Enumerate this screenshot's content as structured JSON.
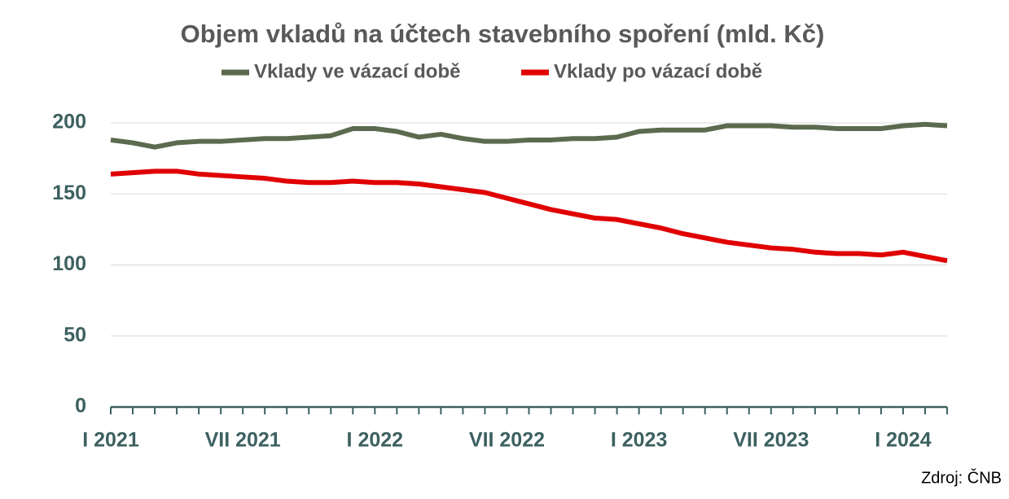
{
  "chart_data": {
    "type": "line",
    "title": "Objem vkladů na účtech stavebního spoření (mld. Kč)",
    "source": "Zdroj: ČNB",
    "categories": [
      "I 2021",
      null,
      null,
      null,
      null,
      null,
      "VII 2021",
      null,
      null,
      null,
      null,
      null,
      "I 2022",
      null,
      null,
      null,
      null,
      null,
      "VII 2022",
      null,
      null,
      null,
      null,
      null,
      "I 2023",
      null,
      null,
      null,
      null,
      null,
      "VII 2023",
      null,
      null,
      null,
      null,
      null,
      "I 2024",
      null,
      null
    ],
    "series": [
      {
        "name": "Vklady ve vázací době",
        "color": "#5b6b4f",
        "values": [
          188,
          186,
          183,
          186,
          187,
          187,
          188,
          189,
          189,
          190,
          191,
          196,
          196,
          194,
          190,
          192,
          189,
          187,
          187,
          188,
          188,
          189,
          189,
          190,
          194,
          195,
          195,
          195,
          198,
          198,
          198,
          197,
          197,
          196,
          196,
          196,
          198,
          199,
          198
        ]
      },
      {
        "name": "Vklady po vázací době",
        "color": "#e00000",
        "values": [
          164,
          165,
          166,
          166,
          164,
          163,
          162,
          161,
          159,
          158,
          158,
          159,
          158,
          158,
          157,
          155,
          153,
          151,
          147,
          143,
          139,
          136,
          133,
          132,
          129,
          126,
          122,
          119,
          116,
          114,
          112,
          111,
          109,
          108,
          108,
          107,
          109,
          106,
          103
        ]
      }
    ],
    "ylim": [
      0,
      200
    ],
    "yticks": [
      0,
      50,
      100,
      150,
      200
    ],
    "grid": true,
    "legend": "top"
  }
}
